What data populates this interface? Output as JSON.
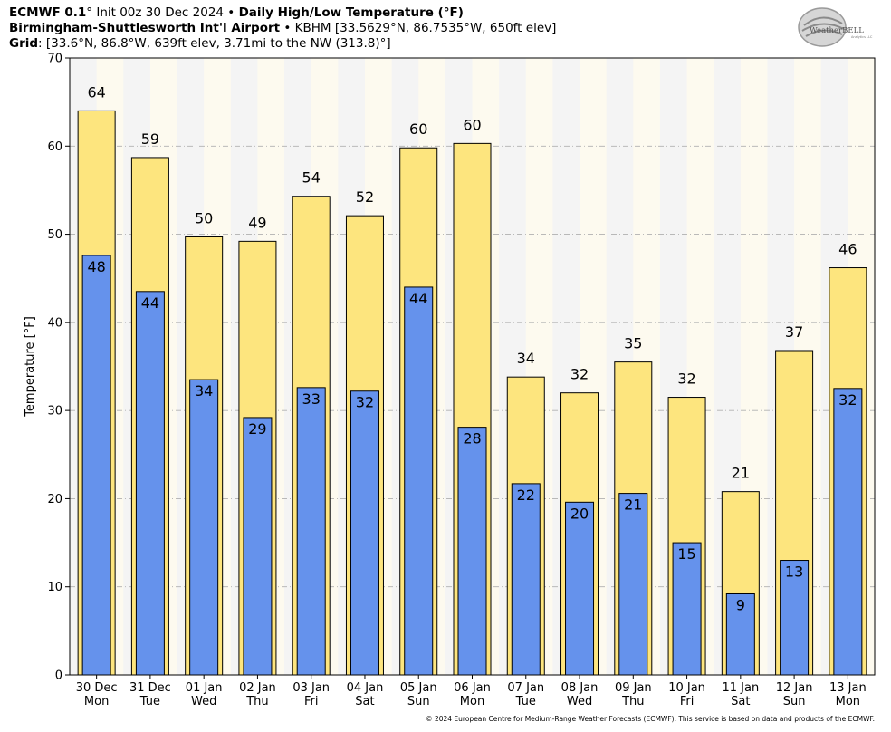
{
  "header": {
    "line1": {
      "model": "ECMWF 0.1",
      "init": "° Init 00z 30 Dec 2024 • ",
      "product": "Daily High/Low Temperature (°F)"
    },
    "line2": {
      "station": "Birmingham-Shuttlesworth Int'l Airport",
      "details": " • KBHM [33.5629°N, 86.7535°W, 650ft elev]"
    },
    "line3": {
      "label": "Grid",
      "details": ": [33.6°N, 86.8°W, 639ft elev, 3.71mi to the NW (313.8)°]"
    }
  },
  "logo": {
    "text": "WeatherBELL",
    "subtext": "Analytics LLC"
  },
  "footer": "© 2024 European Centre for Medium-Range Weather Forecasts (ECMWF). This service is based on data and products of the ECMWF.",
  "colors": {
    "high": "#fde57e",
    "low": "#6592ec",
    "plot_bg": "#f4f4f4",
    "night_band": "#fdfaef",
    "grid": "#b0b0b0"
  },
  "chart_data": {
    "type": "bar",
    "ylabel": "Temperature [°F]",
    "ylim": [
      0,
      70
    ],
    "yticks": [
      0,
      10,
      20,
      30,
      40,
      50,
      60,
      70
    ],
    "grid": true,
    "categories": [
      {
        "date": "30 Dec",
        "day": "Mon"
      },
      {
        "date": "31 Dec",
        "day": "Tue"
      },
      {
        "date": "01 Jan",
        "day": "Wed"
      },
      {
        "date": "02 Jan",
        "day": "Thu"
      },
      {
        "date": "03 Jan",
        "day": "Fri"
      },
      {
        "date": "04 Jan",
        "day": "Sat"
      },
      {
        "date": "05 Jan",
        "day": "Sun"
      },
      {
        "date": "06 Jan",
        "day": "Mon"
      },
      {
        "date": "07 Jan",
        "day": "Tue"
      },
      {
        "date": "08 Jan",
        "day": "Wed"
      },
      {
        "date": "09 Jan",
        "day": "Thu"
      },
      {
        "date": "10 Jan",
        "day": "Fri"
      },
      {
        "date": "11 Jan",
        "day": "Sat"
      },
      {
        "date": "12 Jan",
        "day": "Sun"
      },
      {
        "date": "13 Jan",
        "day": "Mon"
      }
    ],
    "series": [
      {
        "name": "High",
        "values": [
          64,
          58.7,
          49.7,
          49.2,
          54.3,
          52.1,
          59.8,
          60.3,
          33.8,
          32.0,
          35.5,
          31.5,
          20.8,
          36.8,
          46.2
        ],
        "labels": [
          "64",
          "59",
          "50",
          "49",
          "54",
          "52",
          "60",
          "60",
          "34",
          "32",
          "35",
          "32",
          "21",
          "37",
          "46"
        ]
      },
      {
        "name": "Low",
        "values": [
          47.6,
          43.5,
          33.5,
          29.2,
          32.6,
          32.2,
          44.0,
          28.1,
          21.7,
          19.6,
          20.6,
          15.0,
          9.2,
          13.0,
          32.5
        ],
        "labels": [
          "48",
          "44",
          "34",
          "29",
          "33",
          "32",
          "44",
          "28",
          "22",
          "20",
          "21",
          "15",
          "9",
          "13",
          "32"
        ]
      }
    ]
  }
}
